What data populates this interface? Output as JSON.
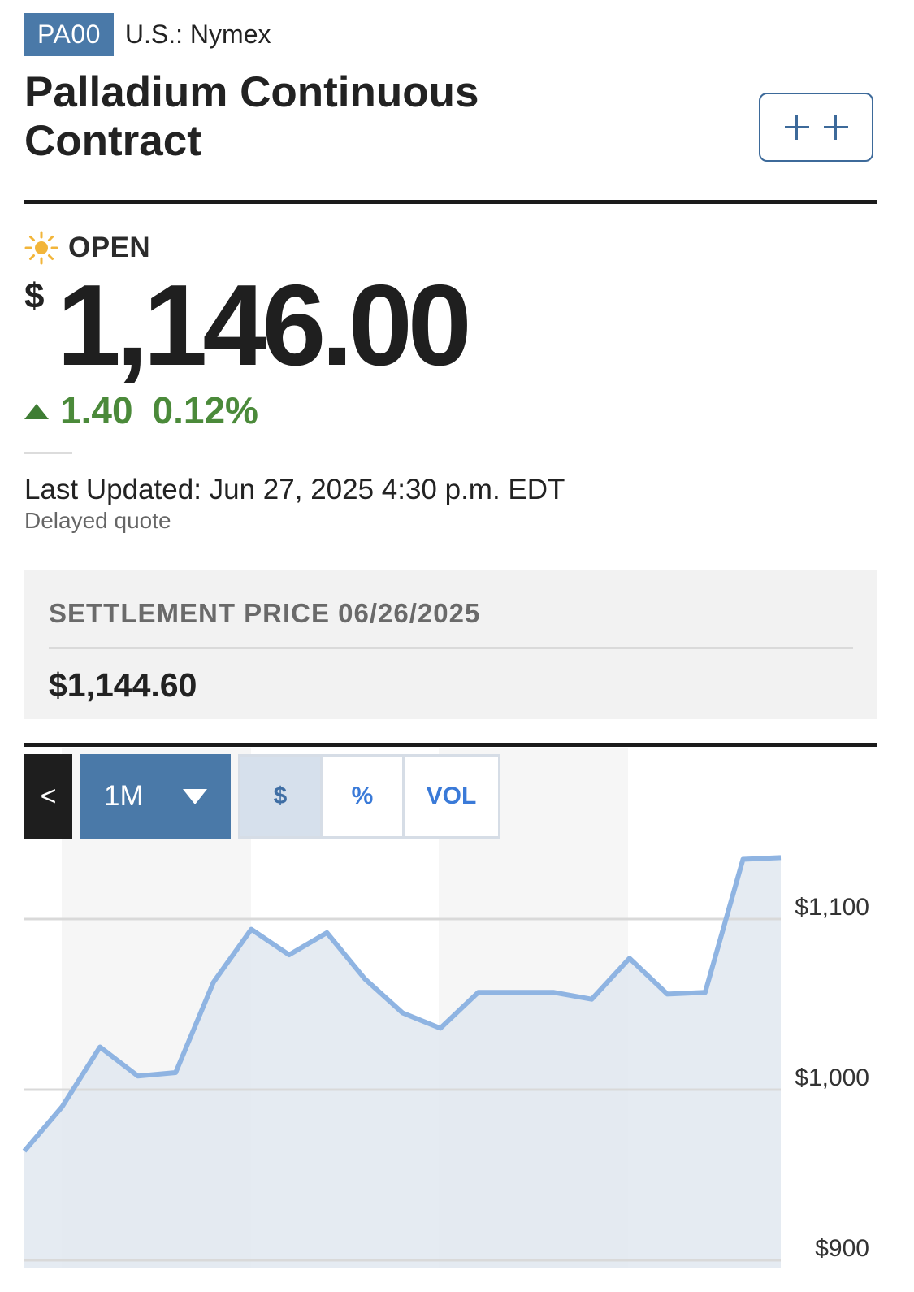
{
  "header": {
    "ticker": "PA00",
    "exchange": "U.S.: Nymex",
    "title": "Palladium Continuous Contract",
    "watchlist_button_label": "+ +"
  },
  "quote": {
    "status_icon": "sun-icon",
    "status": "OPEN",
    "currency_symbol": "$",
    "price": "1,146.00",
    "direction_icon": "up-triangle-icon",
    "change": "1.40",
    "change_percent": "0.12%",
    "last_updated": "Last Updated: Jun 27, 2025 4:30 p.m. EDT",
    "delayed_note": "Delayed quote"
  },
  "settlement": {
    "label": "SETTLEMENT PRICE 06/26/2025",
    "value": "$1,144.60"
  },
  "chart_controls": {
    "back_icon": "chevron-left-icon",
    "back_label": "<",
    "range": "1M",
    "range_caret_icon": "caret-down-icon",
    "modes": [
      "$",
      "%",
      "VOL"
    ],
    "active_mode": "$"
  },
  "colors": {
    "accent_blue": "#4a79a8",
    "positive_green": "#4b8a3a",
    "chart_line": "#8fb4e2",
    "chart_fill": "#e1e8f0"
  },
  "chart_data": {
    "type": "area",
    "title": "",
    "xlabel": "",
    "ylabel": "",
    "ylim": [
      900,
      1100
    ],
    "ytick_labels": [
      "$1,100",
      "$1,000",
      "$900"
    ],
    "yticks": [
      1100,
      1000,
      900
    ],
    "grid": true,
    "series": [
      {
        "values": [
          964,
          990,
          1025,
          1008,
          1010,
          1063,
          1094,
          1079,
          1092,
          1065,
          1045,
          1036,
          1057,
          1057,
          1057,
          1053,
          1077,
          1056,
          1057,
          1135,
          1136
        ]
      }
    ]
  }
}
